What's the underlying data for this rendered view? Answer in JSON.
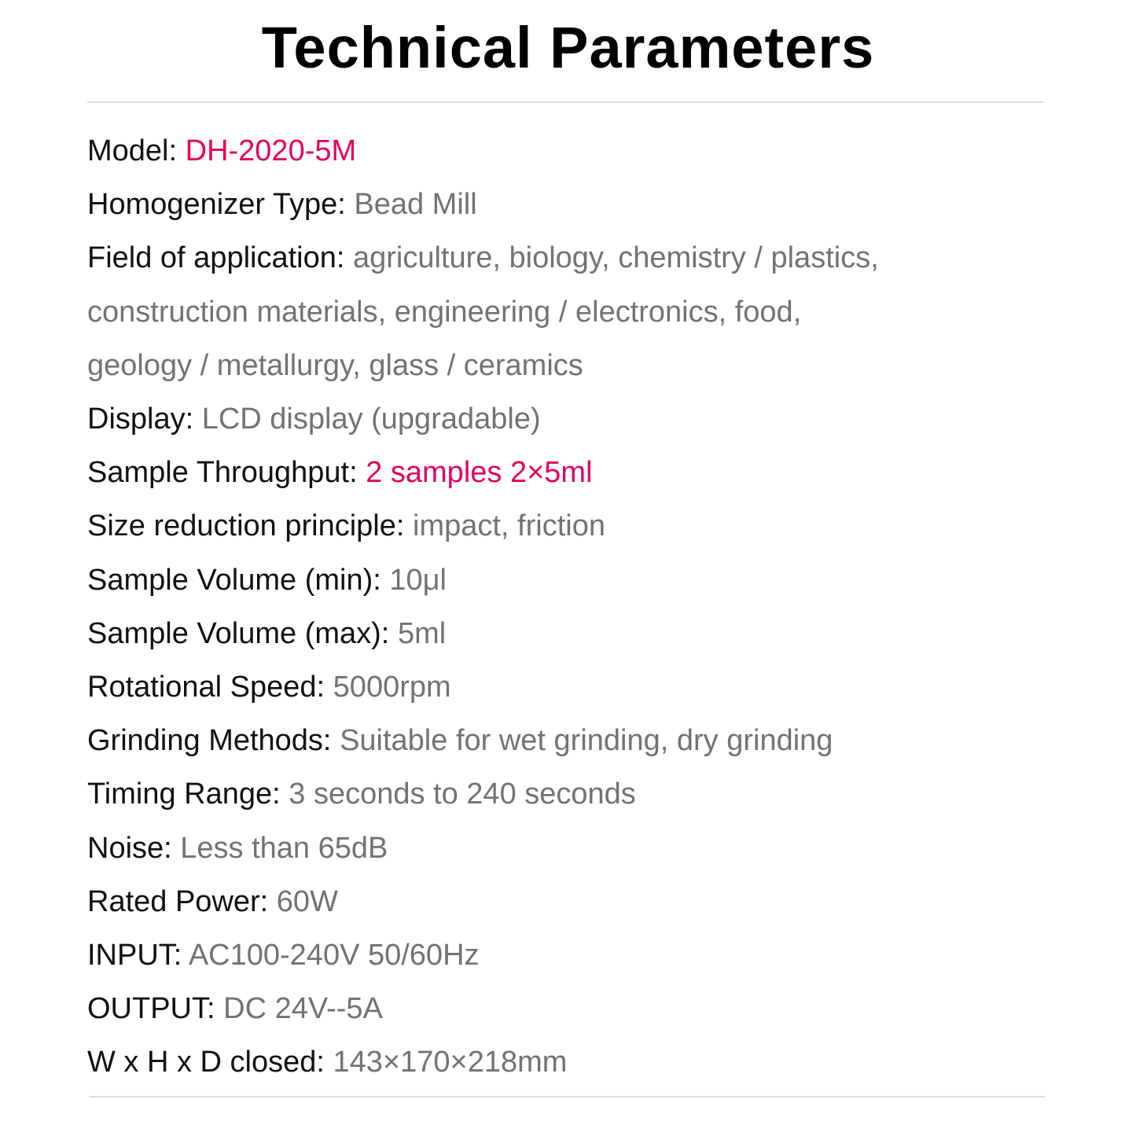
{
  "title": "Technical Parameters",
  "colors": {
    "accent": "#e8005a",
    "value": "#727276",
    "label": "#111111"
  },
  "params": [
    {
      "label": "Model:",
      "value": "DH-2020-5M",
      "accent": true
    },
    {
      "label": "Homogenizer Type:",
      "value": "Bead Mill"
    },
    {
      "label": "Field of application:",
      "value_lines": [
        "agriculture, biology, chemistry / plastics,",
        "construction materials, engineering / electronics, food,",
        "geology / metallurgy, glass / ceramics"
      ]
    },
    {
      "label": "Display:",
      "value": "LCD display (upgradable)"
    },
    {
      "label": "Sample Throughput:",
      "value": "2 samples 2×5ml",
      "accent": true
    },
    {
      "label": "Size reduction principle:",
      "value": "impact, friction"
    },
    {
      "label": "Sample Volume (min):",
      "value": " 10μl"
    },
    {
      "label": "Sample Volume (max):",
      "value": "5ml"
    },
    {
      "label": "Rotational Speed:",
      "value": "5000rpm"
    },
    {
      "label": "Grinding Methods:",
      "value": "Suitable for wet grinding, dry grinding"
    },
    {
      "label": "Timing Range:",
      "value": "3 seconds to 240 seconds"
    },
    {
      "label": "Noise:",
      "value": "Less than 65dB"
    },
    {
      "label": "Rated Power:",
      "value": "60W"
    },
    {
      "label": "INPUT:",
      "value": "AC100-240V 50/60Hz"
    },
    {
      "label": "OUTPUT:",
      "value": "DC 24V--5A"
    },
    {
      "label": "W x H x D closed:",
      "value": "143×170×218mm"
    }
  ]
}
